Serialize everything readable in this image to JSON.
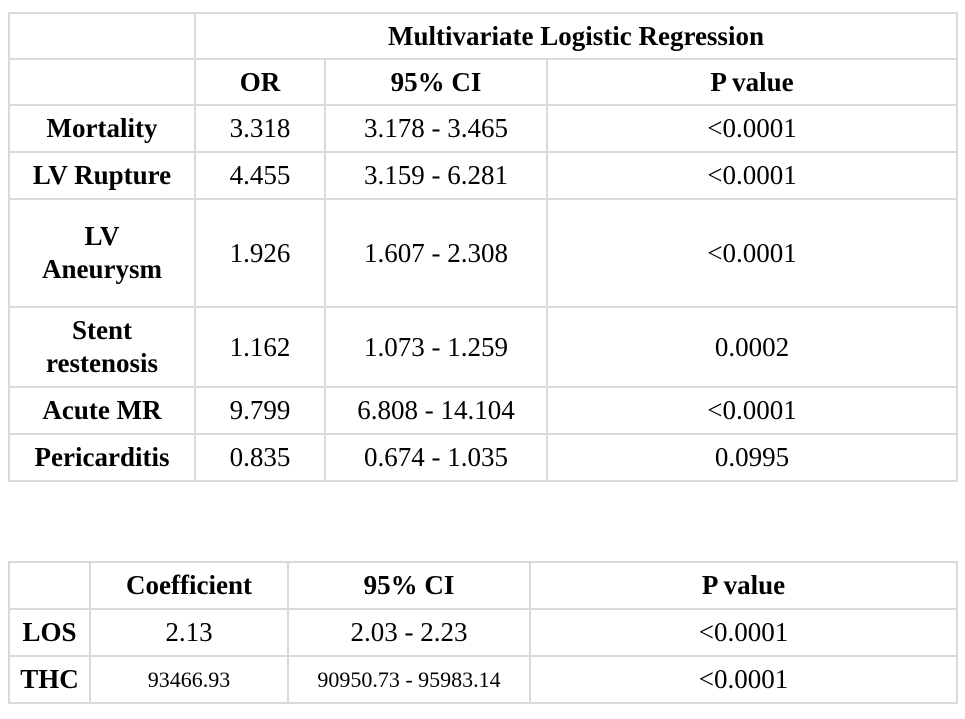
{
  "table1": {
    "group_header": "Multivariate Logistic Regression",
    "columns": [
      "OR",
      "95% CI",
      "P value"
    ],
    "rows": [
      {
        "label_lines": [
          "Mortality"
        ],
        "or": "3.318",
        "ci": "3.178 - 3.465",
        "p": "<0.0001"
      },
      {
        "label_lines": [
          "LV Rupture"
        ],
        "or": "4.455",
        "ci": "3.159 - 6.281",
        "p": "<0.0001"
      },
      {
        "label_lines": [
          "LV",
          "Aneurysm"
        ],
        "or": "1.926",
        "ci": "1.607 - 2.308",
        "p": "<0.0001"
      },
      {
        "label_lines": [
          "Stent",
          "restenosis"
        ],
        "or": "1.162",
        "ci": "1.073 - 1.259",
        "p": "0.0002"
      },
      {
        "label_lines": [
          "Acute MR"
        ],
        "or": "9.799",
        "ci": "6.808 - 14.104",
        "p": "<0.0001"
      },
      {
        "label_lines": [
          "Pericarditis"
        ],
        "or": "0.835",
        "ci": "0.674 - 1.035",
        "p": "0.0995"
      }
    ]
  },
  "table2": {
    "columns": [
      "Coefficient",
      "95% CI",
      "P value"
    ],
    "rows": [
      {
        "label": "LOS",
        "coef": "2.13",
        "ci": "2.03 - 2.23",
        "p": "<0.0001"
      },
      {
        "label": "THC",
        "coef": "93466.93",
        "ci": "90950.73 - 95983.14",
        "p": "<0.0001"
      }
    ]
  }
}
